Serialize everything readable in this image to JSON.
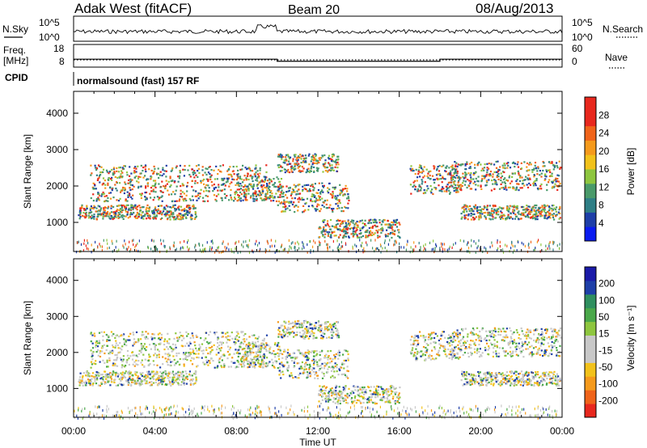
{
  "header": {
    "radar": "Adak West (fitACF)",
    "beam": "Beam 20",
    "date": "08/Aug/2013"
  },
  "side_labels": {
    "nsky": "N.Sky",
    "nsearch": "N.Search",
    "freq_line1": "Freq.",
    "freq_line2": "[MHz]",
    "nave": "Nave",
    "cpid": "CPID"
  },
  "cpid_text": "normalsound (fast) 157 RF",
  "colors": {
    "power_scale": [
      "#0a1cf0",
      "#1e3fa8",
      "#2f7f86",
      "#4a9a6a",
      "#8ec63f",
      "#f2c21b",
      "#f59a1c",
      "#f0641a",
      "#e8281e",
      "#e8281e"
    ],
    "velocity_scale": [
      "#e8281e",
      "#f0641a",
      "#f59a1c",
      "#f2c21b",
      "#c8c8c8",
      "#c8c8c8",
      "#8ec63f",
      "#4aa84a",
      "#2f8f5f",
      "#1e3fa8",
      "#1a1aa8"
    ]
  },
  "chart_data": [
    {
      "type": "line",
      "name": "noise-panel",
      "y_ticks": [
        "10^5",
        "10^0"
      ],
      "right_ticks": [
        "10^5",
        "10^0"
      ],
      "series": [
        {
          "name": "N.Sky",
          "style": "solid"
        },
        {
          "name": "N.Search",
          "style": "dotted"
        }
      ]
    },
    {
      "type": "line",
      "name": "frequency-nave-panel",
      "left_ticks": [
        "18",
        "8"
      ],
      "right_ticks": [
        "60",
        "0"
      ],
      "series": [
        {
          "name": "Freq.",
          "style": "solid",
          "x": [
            "00:00",
            "10:00",
            "10:00",
            "18:00",
            "18:00",
            "24:00"
          ],
          "y": [
            11.5,
            11.5,
            10.6,
            10.6,
            11.5,
            11.5
          ]
        },
        {
          "name": "Nave",
          "style": "dotted",
          "x": [
            "00:00",
            "24:00"
          ],
          "y": [
            8,
            8
          ]
        }
      ]
    },
    {
      "type": "heatmap",
      "name": "power-rti",
      "ylabel": "Slant Range [km]",
      "y_ticks": [
        "4000",
        "3000",
        "2000",
        "1000"
      ],
      "ylim": [
        200,
        4600
      ],
      "colorbar_label": "Power [dB]",
      "colorbar_ticks": [
        "28",
        "24",
        "20",
        "16",
        "12",
        "8",
        "4"
      ],
      "colorbar_range": [
        0,
        30
      ]
    },
    {
      "type": "heatmap",
      "name": "velocity-rti",
      "ylabel": "Slant Range [km]",
      "y_ticks": [
        "4000",
        "3000",
        "2000",
        "1000"
      ],
      "ylim": [
        200,
        4600
      ],
      "colorbar_label": "Velocity [m s⁻¹]",
      "colorbar_ticks": [
        "200",
        "100",
        "50",
        "15",
        "-15",
        "-50",
        "-100",
        "-200"
      ]
    },
    {
      "type": "axis",
      "name": "time-axis",
      "xlabel": "Time UT",
      "x_ticks": [
        "00:00",
        "04:00",
        "08:00",
        "12:00",
        "16:00",
        "20:00",
        "00:00"
      ],
      "xlim": [
        0,
        24
      ]
    }
  ]
}
